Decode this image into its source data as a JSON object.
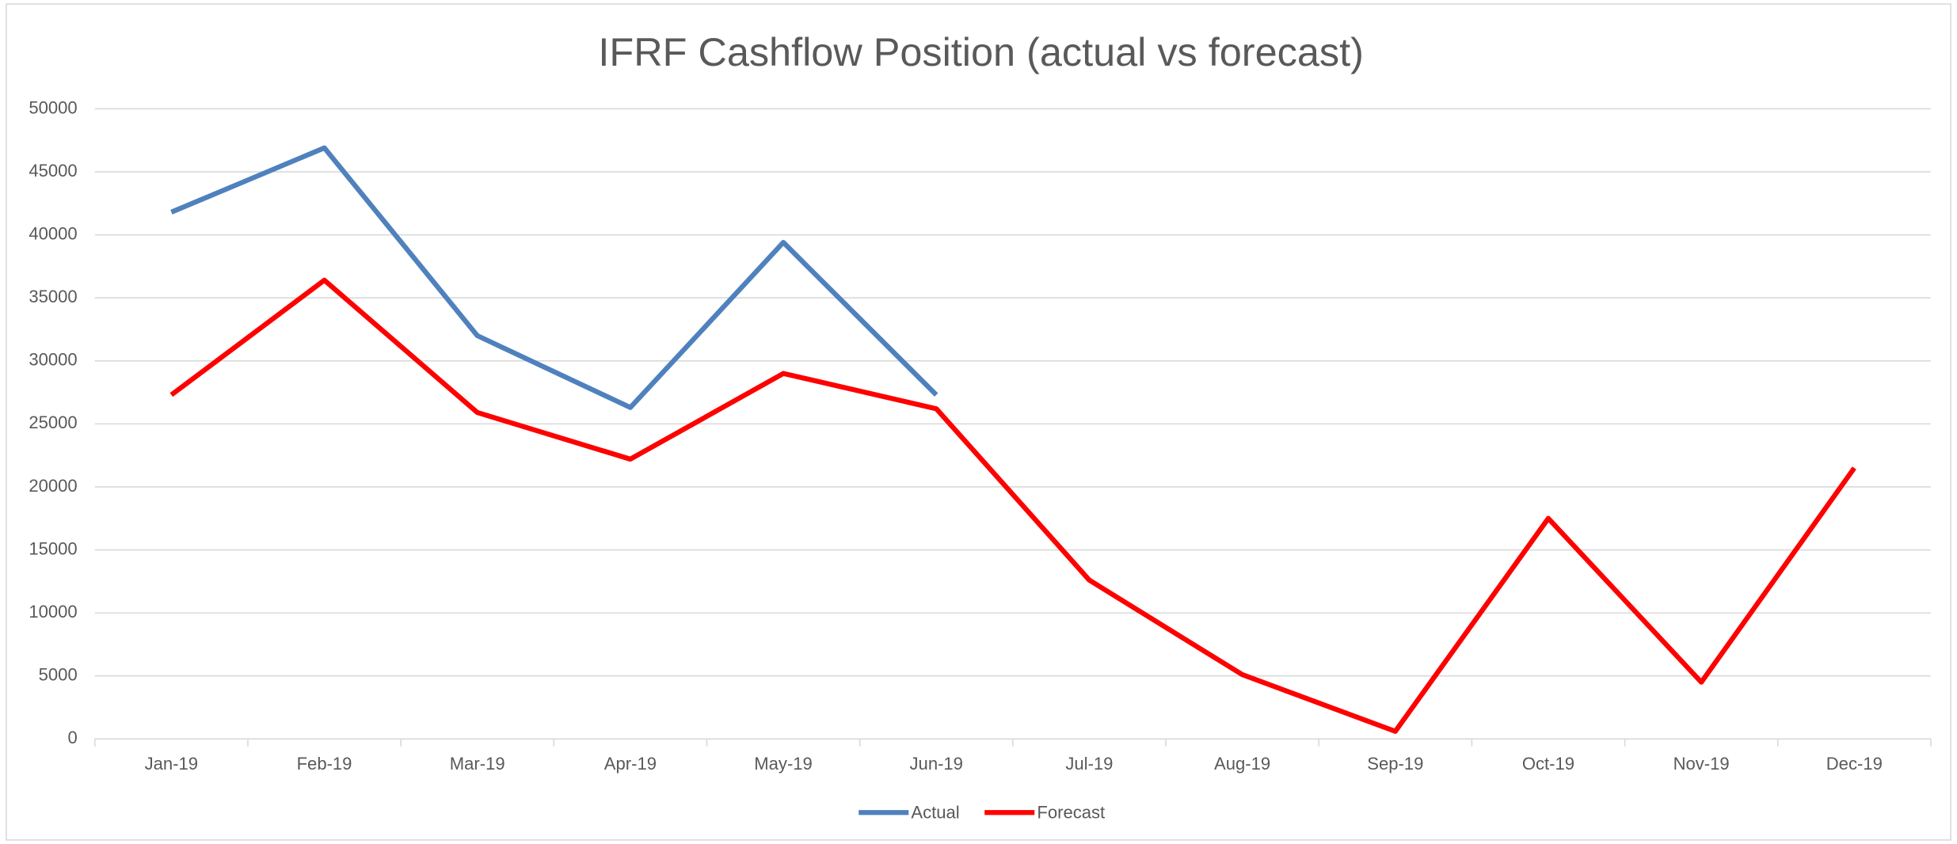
{
  "chart_data": {
    "type": "line",
    "title": "IFRF Cashflow Position (actual vs forecast)",
    "categories": [
      "Jan-19",
      "Feb-19",
      "Mar-19",
      "Apr-19",
      "May-19",
      "Jun-19",
      "Jul-19",
      "Aug-19",
      "Sep-19",
      "Oct-19",
      "Nov-19",
      "Dec-19"
    ],
    "series": [
      {
        "name": "Actual",
        "color": "#4f81bd",
        "values": [
          41800,
          46900,
          32000,
          26300,
          39400,
          27300,
          null,
          null,
          null,
          null,
          null,
          null
        ]
      },
      {
        "name": "Forecast",
        "color": "#ff0000",
        "values": [
          27300,
          36400,
          25900,
          22200,
          29000,
          26200,
          12600,
          5100,
          600,
          17500,
          4500,
          21500
        ]
      }
    ],
    "ylim": [
      0,
      50000
    ],
    "yticks": [
      0,
      5000,
      10000,
      15000,
      20000,
      25000,
      30000,
      35000,
      40000,
      45000,
      50000
    ],
    "grid": true,
    "legend": "bottom"
  }
}
